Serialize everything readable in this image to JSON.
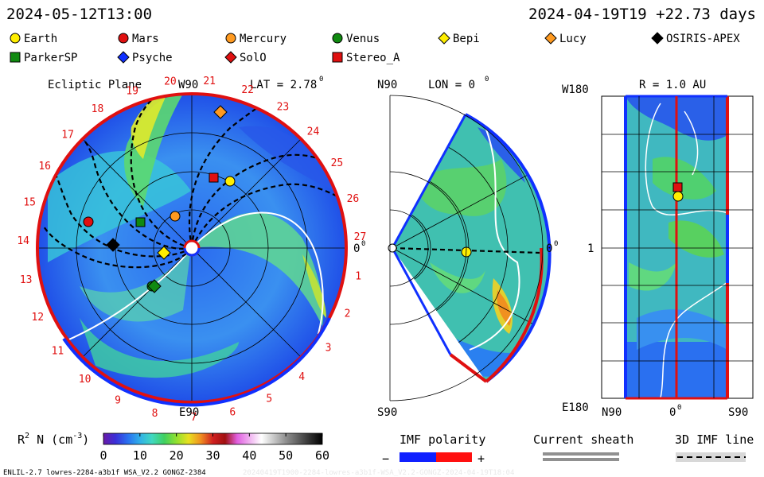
{
  "header": {
    "timestamp": "2024-05-12T13:00",
    "run_info": "2024-04-19T19 +22.73 days"
  },
  "legend": [
    {
      "label": "Earth",
      "shape": "circle",
      "color": "#ffee00"
    },
    {
      "label": "Mars",
      "shape": "circle",
      "color": "#e01010"
    },
    {
      "label": "Mercury",
      "shape": "circle",
      "color": "#ff9a20"
    },
    {
      "label": "Venus",
      "shape": "circle",
      "color": "#108a10"
    },
    {
      "label": "Bepi",
      "shape": "diamond",
      "color": "#ffee00"
    },
    {
      "label": "Lucy",
      "shape": "diamond",
      "color": "#ff9a20"
    },
    {
      "label": "OSIRIS-APEX",
      "shape": "diamond",
      "color": "#000000"
    },
    {
      "label": "ParkerSP",
      "shape": "square",
      "color": "#108a10"
    },
    {
      "label": "Psyche",
      "shape": "diamond",
      "color": "#1030ff"
    },
    {
      "label": "SolO",
      "shape": "diamond",
      "color": "#e01010"
    },
    {
      "label": "Stereo_A",
      "shape": "square",
      "color": "#e01010"
    }
  ],
  "panels": {
    "ecliptic": {
      "title": "Ecliptic Plane",
      "lat_label": "LAT = 2.78",
      "deg_mark": "0",
      "top_label": "W90",
      "bottom_label": "E90",
      "right_label": "0",
      "carrington_days": [
        "1",
        "2",
        "3",
        "4",
        "5",
        "6",
        "7",
        "8",
        "9",
        "10",
        "11",
        "12",
        "13",
        "14",
        "15",
        "16",
        "17",
        "18",
        "19",
        "20",
        "21",
        "22",
        "23",
        "24",
        "25",
        "26",
        "27"
      ]
    },
    "meridional": {
      "title": "LON = 0",
      "deg_mark": "0",
      "top_label": "N90",
      "bottom_label": "S90",
      "right_label": "0"
    },
    "rightpanel": {
      "title": "R = 1.0 AU",
      "top_label": "W180",
      "mid_label": "1",
      "bottom_label": "E180",
      "x_labels": [
        "N90",
        "0",
        "S90"
      ],
      "deg_mark": "0"
    }
  },
  "chart_data": {
    "type": "heatmap",
    "title": "R^2 N (cm^-3)",
    "colorbar": {
      "label_base": "R",
      "label_mid": " N (cm",
      "label_end": ")",
      "sup1": "2",
      "sup2": "-3",
      "ticks": [
        "0",
        "10",
        "20",
        "30",
        "40",
        "50",
        "60"
      ],
      "range": [
        0,
        60
      ],
      "colors": [
        "#6a1aa8",
        "#3a2fd8",
        "#2a70f0",
        "#30b0e8",
        "#40d8c0",
        "#40d060",
        "#90e030",
        "#e8e020",
        "#f09020",
        "#d02020",
        "#a01010",
        "#e060e0",
        "#f0b0f0",
        "#ffffff",
        "#c8c8c8",
        "#909090",
        "#606060",
        "#303030",
        "#000000"
      ]
    },
    "imf_polarity": {
      "title": "IMF polarity",
      "minus": "−",
      "plus": "+",
      "neg_color": "#1020ff",
      "pos_color": "#ff1010"
    },
    "current_sheath": {
      "title": "Current sheath"
    },
    "imf_line": {
      "title": "3D IMF line"
    }
  },
  "footer": {
    "left": "ENLIL-2.7 lowres-2284-a3b1f WSA_V2.2 GONGZ-2384",
    "faded": "20240419T1900-2284-lowres-a3b1f-WSA_V2.2-GONGZ-2024-04-19T18:04"
  }
}
